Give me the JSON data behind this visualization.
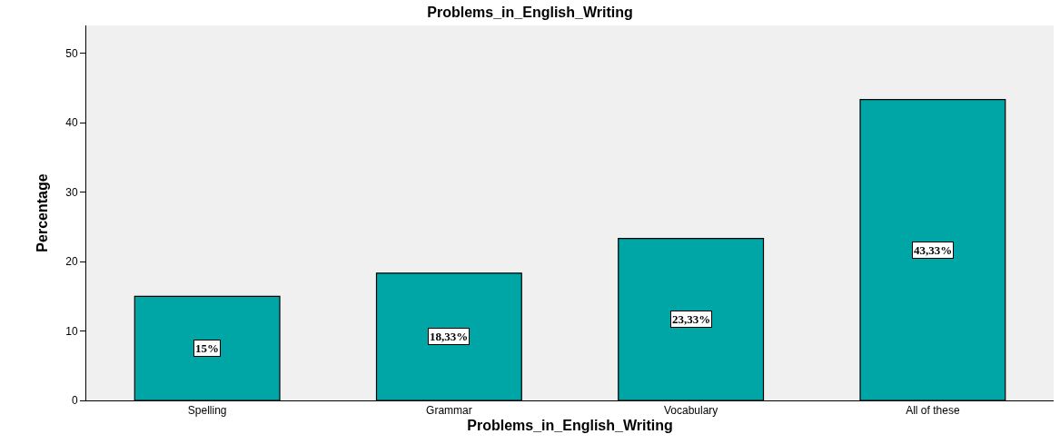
{
  "chart_data": {
    "type": "bar",
    "title": "Problems_in_English_Writing",
    "xlabel": "Problems_in_English_Writing",
    "ylabel": "Percentage",
    "categories": [
      "Spelling",
      "Grammar",
      "Vocabulary",
      "All of these"
    ],
    "values": [
      15,
      18.33,
      23.33,
      43.33
    ],
    "value_labels": [
      "15%",
      "18,33%",
      "23,33%",
      "43,33%"
    ],
    "color": "#00a6a6",
    "ylim": [
      0,
      54
    ],
    "yticks": [
      0,
      10,
      20,
      30,
      40,
      50
    ],
    "grid": false,
    "legend": false
  }
}
